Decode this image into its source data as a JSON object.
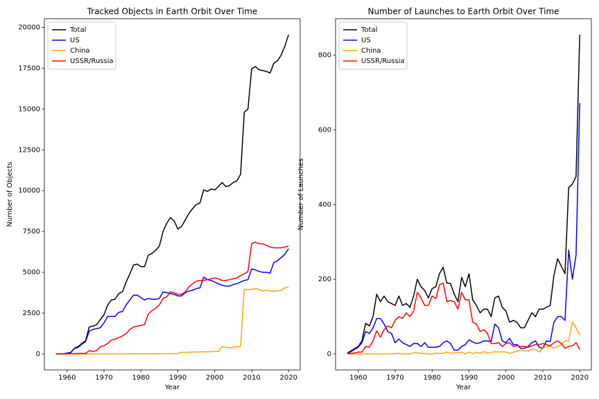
{
  "chart_data": [
    {
      "type": "line",
      "title": "Tracked Objects in Earth Orbit Over Time",
      "xlabel": "Year",
      "ylabel": "Number of Objects",
      "x": [
        1957,
        1958,
        1959,
        1960,
        1961,
        1962,
        1963,
        1964,
        1965,
        1966,
        1967,
        1968,
        1969,
        1970,
        1971,
        1972,
        1973,
        1974,
        1975,
        1976,
        1977,
        1978,
        1979,
        1980,
        1981,
        1982,
        1983,
        1984,
        1985,
        1986,
        1987,
        1988,
        1989,
        1990,
        1991,
        1992,
        1993,
        1994,
        1995,
        1996,
        1997,
        1998,
        1999,
        2000,
        2001,
        2002,
        2003,
        2004,
        2005,
        2006,
        2007,
        2008,
        2009,
        2010,
        2011,
        2012,
        2013,
        2014,
        2015,
        2016,
        2017,
        2018,
        2019,
        2020
      ],
      "series": [
        {
          "name": "Total",
          "color": "#000000",
          "values": [
            0,
            5,
            10,
            50,
            100,
            350,
            450,
            650,
            800,
            1650,
            1700,
            1800,
            2100,
            2400,
            3000,
            3300,
            3350,
            3700,
            3800,
            4400,
            4900,
            5450,
            5500,
            5350,
            5350,
            6050,
            6150,
            6350,
            6600,
            7500,
            8000,
            8350,
            8150,
            7650,
            7800,
            8200,
            8600,
            8900,
            9150,
            9250,
            10050,
            9950,
            10100,
            10050,
            10250,
            10500,
            10250,
            10300,
            10500,
            10600,
            11000,
            14800,
            15000,
            17450,
            17600,
            17400,
            17350,
            17300,
            17200,
            17800,
            17950,
            18300,
            18850,
            19550
          ]
        },
        {
          "name": "US",
          "color": "#0000ff",
          "values": [
            0,
            3,
            8,
            40,
            80,
            330,
            400,
            600,
            750,
            1400,
            1500,
            1550,
            1600,
            1900,
            2300,
            2300,
            2300,
            2550,
            2600,
            3000,
            3300,
            3600,
            3600,
            3450,
            3300,
            3400,
            3350,
            3350,
            3400,
            3800,
            3750,
            3700,
            3650,
            3550,
            3550,
            3750,
            3850,
            3900,
            4000,
            4050,
            4700,
            4550,
            4500,
            4400,
            4300,
            4200,
            4150,
            4150,
            4250,
            4300,
            4400,
            4500,
            4550,
            5200,
            5150,
            5050,
            5000,
            5000,
            4950,
            5600,
            5700,
            5900,
            6100,
            6450
          ]
        },
        {
          "name": "China",
          "color": "#ffa500",
          "values": [
            0,
            0,
            0,
            0,
            0,
            0,
            0,
            0,
            0,
            0,
            0,
            0,
            0,
            1,
            2,
            3,
            3,
            4,
            5,
            5,
            6,
            6,
            7,
            7,
            8,
            8,
            9,
            10,
            10,
            12,
            14,
            15,
            18,
            20,
            100,
            100,
            110,
            115,
            120,
            125,
            130,
            135,
            140,
            150,
            150,
            450,
            400,
            380,
            400,
            450,
            450,
            3950,
            3950,
            3950,
            4000,
            3950,
            3850,
            3900,
            3850,
            3850,
            3850,
            3900,
            4050,
            4100
          ]
        },
        {
          "name": "USSR/Russia",
          "color": "#ff0000",
          "values": [
            0,
            2,
            5,
            10,
            15,
            20,
            25,
            28,
            30,
            200,
            150,
            200,
            450,
            500,
            650,
            850,
            900,
            1000,
            1100,
            1250,
            1500,
            1650,
            1700,
            1750,
            1800,
            2450,
            2650,
            2800,
            3000,
            3400,
            3500,
            3800,
            3750,
            3650,
            3650,
            3800,
            4100,
            4300,
            4450,
            4500,
            4500,
            4550,
            4600,
            4650,
            4600,
            4500,
            4500,
            4550,
            4600,
            4650,
            4800,
            4900,
            5050,
            6750,
            6850,
            6750,
            6750,
            6650,
            6550,
            6500,
            6500,
            6500,
            6550,
            6600
          ]
        }
      ],
      "xlim": [
        1953.85,
        2023.15
      ],
      "ylim": [
        -977.5,
        20527.5
      ],
      "xticks": [
        1960,
        1970,
        1980,
        1990,
        2000,
        2010,
        2020
      ],
      "yticks": [
        0,
        2500,
        5000,
        7500,
        10000,
        12500,
        15000,
        17500,
        20000
      ],
      "legend": "upper left"
    },
    {
      "type": "line",
      "title": "Number of Launches to Earth Orbit Over Time",
      "xlabel": "Year",
      "ylabel": "Number of Launches",
      "x": [
        1957,
        1958,
        1959,
        1960,
        1961,
        1962,
        1963,
        1964,
        1965,
        1966,
        1967,
        1968,
        1969,
        1970,
        1971,
        1972,
        1973,
        1974,
        1975,
        1976,
        1977,
        1978,
        1979,
        1980,
        1981,
        1982,
        1983,
        1984,
        1985,
        1986,
        1987,
        1988,
        1989,
        1990,
        1991,
        1992,
        1993,
        1994,
        1995,
        1996,
        1997,
        1998,
        1999,
        2000,
        2001,
        2002,
        2003,
        2004,
        2005,
        2006,
        2007,
        2008,
        2009,
        2010,
        2011,
        2012,
        2013,
        2014,
        2015,
        2016,
        2017,
        2018,
        2019,
        2020
      ],
      "series": [
        {
          "name": "Total",
          "color": "#000000",
          "values": [
            2,
            8,
            14,
            20,
            35,
            82,
            75,
            100,
            160,
            140,
            155,
            140,
            135,
            130,
            155,
            130,
            135,
            125,
            155,
            200,
            180,
            170,
            150,
            175,
            180,
            215,
            232,
            190,
            188,
            160,
            140,
            205,
            180,
            215,
            145,
            130,
            110,
            120,
            120,
            100,
            150,
            155,
            125,
            115,
            85,
            90,
            85,
            70,
            70,
            90,
            110,
            100,
            120,
            120,
            125,
            130,
            210,
            255,
            235,
            215,
            445,
            455,
            475,
            855
          ]
        },
        {
          "name": "US",
          "color": "#0000ff",
          "values": [
            0,
            6,
            12,
            18,
            30,
            60,
            55,
            70,
            95,
            95,
            80,
            60,
            55,
            30,
            40,
            30,
            25,
            20,
            28,
            28,
            20,
            30,
            18,
            18,
            18,
            20,
            30,
            35,
            28,
            10,
            10,
            20,
            25,
            38,
            32,
            28,
            30,
            35,
            35,
            33,
            80,
            70,
            35,
            30,
            42,
            25,
            25,
            15,
            15,
            20,
            30,
            35,
            18,
            15,
            35,
            33,
            85,
            100,
            100,
            90,
            278,
            200,
            265,
            672
          ]
        },
        {
          "name": "China",
          "color": "#ffa500",
          "values": [
            0,
            0,
            0,
            0,
            0,
            0,
            0,
            0,
            0,
            0,
            0,
            0,
            0,
            1,
            1,
            0,
            0,
            0,
            3,
            3,
            1,
            1,
            0,
            0,
            2,
            1,
            2,
            5,
            2,
            3,
            3,
            5,
            0,
            5,
            1,
            4,
            2,
            6,
            2,
            4,
            6,
            5,
            6,
            5,
            1,
            5,
            7,
            10,
            8,
            8,
            12,
            12,
            5,
            15,
            20,
            20,
            15,
            20,
            25,
            35,
            35,
            85,
            70,
            50
          ]
        },
        {
          "name": "USSR/Russia",
          "color": "#ff0000",
          "values": [
            2,
            1,
            3,
            5,
            5,
            20,
            18,
            35,
            62,
            45,
            65,
            75,
            70,
            90,
            100,
            95,
            110,
            100,
            115,
            165,
            150,
            130,
            130,
            155,
            148,
            185,
            190,
            140,
            143,
            140,
            120,
            165,
            145,
            145,
            85,
            80,
            60,
            65,
            55,
            28,
            28,
            30,
            20,
            28,
            30,
            20,
            22,
            20,
            20,
            18,
            22,
            25,
            25,
            28,
            25,
            22,
            30,
            35,
            28,
            15,
            20,
            22,
            30,
            12
          ]
        }
      ],
      "xlim": [
        1953.85,
        2023.15
      ],
      "ylim": [
        -42.75,
        897.75
      ],
      "xticks": [
        1960,
        1970,
        1980,
        1990,
        2000,
        2010,
        2020
      ],
      "yticks": [
        0,
        200,
        400,
        600,
        800
      ],
      "legend": "upper left"
    }
  ]
}
